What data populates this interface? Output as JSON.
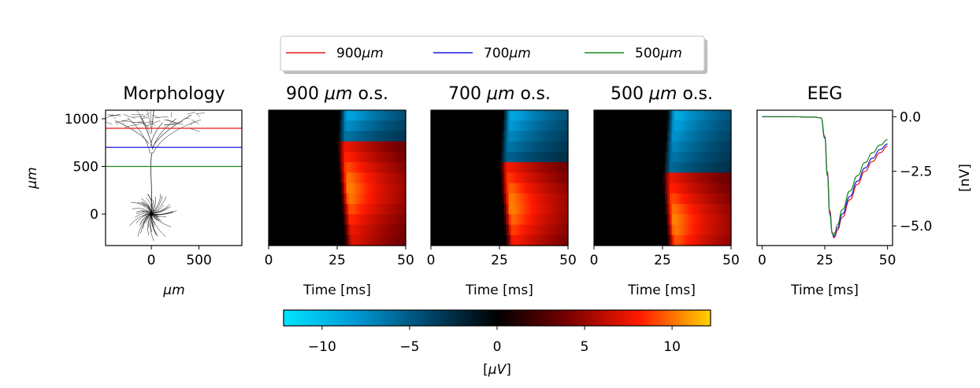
{
  "chart_data": [
    {
      "type": "line",
      "panel": "morphology",
      "title": "Morphology",
      "xlabel": "μm",
      "ylabel": "μm",
      "xticks": [
        0,
        500
      ],
      "yticks": [
        0,
        500,
        1000
      ],
      "xlim": [
        -480,
        950
      ],
      "ylim": [
        -330,
        1090
      ],
      "series": [
        {
          "name": "900μm",
          "color": "#e31a1c",
          "y": 900
        },
        {
          "name": "700μm",
          "color": "#1a1ae3",
          "y": 700
        },
        {
          "name": "500μm",
          "color": "#1a8a1a",
          "y": 500
        }
      ]
    },
    {
      "type": "heatmap",
      "panel": "heat-900",
      "title_prefix": "900 ",
      "title_unit": "μm",
      "title_suffix": " o.s.",
      "xlabel": "Time [ms]",
      "xticks": [
        0,
        25,
        50
      ],
      "xlim": [
        0,
        50
      ],
      "onset_ms": 25,
      "peak_depth_frac": 0.28,
      "rows": 13
    },
    {
      "type": "heatmap",
      "panel": "heat-700",
      "title_prefix": "700 ",
      "title_unit": "μm",
      "title_suffix": " o.s.",
      "xlabel": "Time [ms]",
      "xticks": [
        0,
        25,
        50
      ],
      "xlim": [
        0,
        50
      ],
      "onset_ms": 25,
      "peak_depth_frac": 0.4,
      "rows": 13
    },
    {
      "type": "heatmap",
      "panel": "heat-500",
      "title_prefix": "500 ",
      "title_unit": "μm",
      "title_suffix": " o.s.",
      "xlabel": "Time [ms]",
      "xticks": [
        0,
        25,
        50
      ],
      "xlim": [
        0,
        50
      ],
      "onset_ms": 25,
      "peak_depth_frac": 0.52,
      "rows": 13
    },
    {
      "type": "line",
      "panel": "eeg",
      "title": "EEG",
      "xlabel": "Time [ms]",
      "ylabel": "[nV]",
      "xticks": [
        0,
        25,
        50
      ],
      "yticks": [
        0.0,
        -2.5,
        -5.0
      ],
      "ytick_labels": [
        "0.0",
        "−2.5",
        "−5.0"
      ],
      "xlim": [
        -2,
        52
      ],
      "ylim": [
        -5.9,
        0.3
      ],
      "series": [
        {
          "name": "900μm",
          "color": "#e31a1c",
          "x": [
            0,
            10,
            20,
            23.5,
            25,
            26,
            27,
            28,
            28.6,
            29,
            30,
            32,
            35,
            38,
            41,
            44,
            47,
            50
          ],
          "y": [
            0,
            0,
            -0.01,
            -0.05,
            -0.9,
            -2.5,
            -4.3,
            -5.3,
            -5.55,
            -5.5,
            -5.2,
            -4.6,
            -3.8,
            -3.1,
            -2.5,
            -2.05,
            -1.65,
            -1.35
          ]
        },
        {
          "name": "700μm",
          "color": "#1a1ae3",
          "x": [
            0,
            10,
            20,
            23.5,
            25,
            26,
            27,
            28,
            28.5,
            29,
            30,
            32,
            35,
            38,
            41,
            44,
            47,
            50
          ],
          "y": [
            0,
            0,
            -0.01,
            -0.05,
            -0.95,
            -2.6,
            -4.4,
            -5.35,
            -5.5,
            -5.42,
            -5.1,
            -4.45,
            -3.65,
            -2.95,
            -2.35,
            -1.9,
            -1.5,
            -1.25
          ]
        },
        {
          "name": "500μm",
          "color": "#1a8a1a",
          "x": [
            0,
            10,
            20,
            23.5,
            25,
            26,
            27,
            28,
            28.3,
            29,
            30,
            32,
            35,
            38,
            41,
            44,
            47,
            50
          ],
          "y": [
            0,
            0,
            -0.01,
            -0.05,
            -1.0,
            -2.7,
            -4.5,
            -5.35,
            -5.45,
            -5.3,
            -4.95,
            -4.25,
            -3.4,
            -2.7,
            -2.1,
            -1.65,
            -1.3,
            -1.05
          ]
        }
      ]
    },
    {
      "type": "colorbar",
      "panel": "colorbar",
      "label_prefix": "[",
      "label_unit": "μV",
      "label_suffix": "]",
      "range": [
        -12.2,
        12.2
      ],
      "ticks": [
        -10,
        -5,
        0,
        5,
        10
      ],
      "tick_labels": [
        "−10",
        "−5",
        "0",
        "5",
        "10"
      ],
      "stops": [
        "#00e5ff",
        "#009ad6",
        "#00496e",
        "#000000",
        "#7a0000",
        "#ff1a00",
        "#ffd400"
      ]
    }
  ],
  "legend": {
    "placement": "top-center",
    "items": [
      {
        "number": "900",
        "unit": "μm",
        "color": "#e31a1c"
      },
      {
        "number": "700",
        "unit": "μm",
        "color": "#1a1ae3"
      },
      {
        "number": "500",
        "unit": "μm",
        "color": "#1a8a1a"
      }
    ]
  }
}
